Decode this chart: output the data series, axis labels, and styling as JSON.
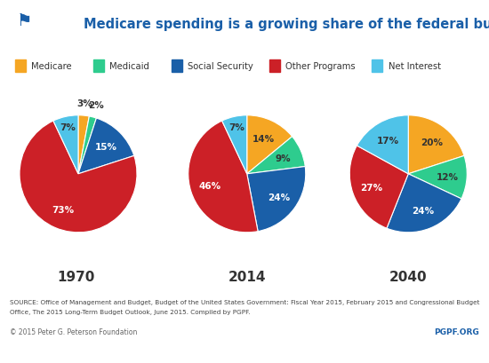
{
  "title": "Medicare spending is a growing share of the federal budget",
  "title_color": "#1a5fa8",
  "background_color": "#f5f5f5",
  "header_color": "#f5f5f5",
  "legend": [
    "Medicare",
    "Medicaid",
    "Social Security",
    "Other Programs",
    "Net Interest"
  ],
  "colors": {
    "Medicare": "#f5a623",
    "Medicaid": "#2ecc8e",
    "Social Security": "#1a5fa8",
    "Other Programs": "#cc2027",
    "Net Interest": "#4fc3e8"
  },
  "years": [
    "1970",
    "2014",
    "2040"
  ],
  "data": {
    "1970": {
      "Medicare": 3,
      "Medicaid": 2,
      "Social Security": 15,
      "Other Programs": 73,
      "Net Interest": 7
    },
    "2014": {
      "Medicare": 14,
      "Medicaid": 9,
      "Social Security": 24,
      "Other Programs": 46,
      "Net Interest": 7
    },
    "2040": {
      "Medicare": 20,
      "Medicaid": 12,
      "Social Security": 24,
      "Other Programs": 27,
      "Net Interest": 17
    }
  },
  "source_text1": "SOURCE: Office of Management and Budget, Budget of the United States Government: Fiscal Year 2015, February 2015 and Congressional Budget",
  "source_text2": "Office, The 2015 Long-Term Budget Outlook, June 2015. Compiled by PGPF.",
  "copyright_text": "© 2015 Peter G. Peterson Foundation",
  "pgpf_text": "PGPF.ORG",
  "pgpf_color": "#1a5fa8",
  "label_colors": {
    "Medicare": "#333333",
    "Medicaid": "#333333",
    "Social Security": "#ffffff",
    "Other Programs": "#ffffff",
    "Net Interest": "#333333"
  }
}
